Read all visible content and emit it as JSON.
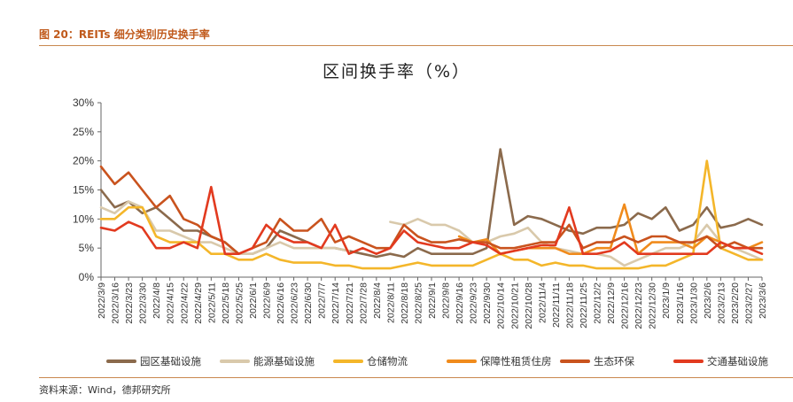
{
  "figure_caption": "图 20：REITs 细分类别历史换手率",
  "source_note": "资料来源：Wind，德邦研究所",
  "chart_data": {
    "type": "line",
    "title": "区间换手率（%）",
    "ylim": [
      0,
      30
    ],
    "y_ticks": [
      0,
      5,
      10,
      15,
      20,
      25,
      30
    ],
    "y_tick_labels": [
      "0%",
      "5%",
      "10%",
      "15%",
      "20%",
      "25%",
      "30%"
    ],
    "x_tick_labels": [
      "2022/3/9",
      "2022/3/16",
      "2022/3/23",
      "2022/3/30",
      "2022/4/8",
      "2022/4/15",
      "2022/4/22",
      "2022/4/29",
      "2022/5/11",
      "2022/5/18",
      "2022/5/25",
      "2022/6/1",
      "2022/6/9",
      "2022/6/16",
      "2022/6/23",
      "2022/6/30",
      "2022/7/7",
      "2022/7/14",
      "2022/7/21",
      "2022/7/28",
      "2022/8/4",
      "2022/8/11",
      "2022/8/18",
      "2022/8/25",
      "2022/9/1",
      "2022/9/8",
      "2022/9/16",
      "2022/9/23",
      "2022/9/30",
      "2022/10/14",
      "2022/10/21",
      "2022/10/28",
      "2022/11/4",
      "2022/11/11",
      "2022/11/18",
      "2022/11/25",
      "2022/12/2",
      "2022/12/9",
      "2022/12/16",
      "2022/12/23",
      "2022/12/30",
      "2023/1/9",
      "2023/1/16",
      "2023/1/30",
      "2023/2/6",
      "2023/2/13",
      "2023/2/20",
      "2023/2/27",
      "2023/3/6"
    ],
    "grid": false,
    "legend_position": "bottom",
    "series": [
      {
        "name": "园区基础设施",
        "color": "#8b6a4c",
        "values": [
          15,
          12,
          13,
          11,
          12,
          10,
          8,
          8,
          7,
          6,
          4,
          4,
          5,
          8,
          7,
          6,
          5,
          5,
          4.5,
          4,
          3.5,
          4,
          3.5,
          5,
          4,
          4,
          4,
          4,
          5,
          22,
          9,
          10.5,
          10,
          9,
          8,
          7.5,
          8.5,
          8.5,
          9,
          11,
          10,
          12,
          8,
          9,
          12,
          8.5,
          9,
          10,
          9
        ]
      },
      {
        "name": "能源基础设施",
        "color": "#d9c9ab",
        "values": [
          12,
          11,
          13,
          12,
          8,
          8,
          7,
          6,
          6,
          5,
          4,
          4,
          5,
          6,
          5,
          5,
          5,
          5,
          4.5,
          null,
          null,
          9.5,
          9,
          10,
          9,
          9,
          8,
          6,
          6,
          7,
          7.5,
          8.5,
          6,
          5,
          4.5,
          4,
          4,
          3.5,
          2,
          3,
          4,
          5,
          5,
          6,
          9,
          6,
          5,
          4,
          3
        ]
      },
      {
        "name": "仓储物流",
        "color": "#f4b62a",
        "values": [
          10,
          10,
          12,
          12,
          7,
          6,
          6,
          6,
          4,
          4,
          3,
          3,
          4,
          3,
          2.5,
          2.5,
          2.5,
          2,
          2,
          1.5,
          1.5,
          1.5,
          2,
          2.5,
          2,
          2,
          2,
          2,
          3,
          4,
          3,
          3,
          2,
          2.5,
          2,
          2,
          1.5,
          1.5,
          1.5,
          1.5,
          2,
          2,
          3,
          4,
          20,
          5,
          4,
          3,
          3
        ]
      },
      {
        "name": "保障性租赁住房",
        "color": "#f08b1c",
        "values": [
          null,
          null,
          null,
          null,
          null,
          null,
          null,
          null,
          null,
          null,
          null,
          null,
          null,
          null,
          null,
          null,
          null,
          null,
          null,
          null,
          null,
          null,
          null,
          null,
          null,
          null,
          7,
          6,
          6.5,
          4,
          4.5,
          5,
          5,
          5,
          4,
          4,
          5,
          5,
          12.5,
          4,
          6,
          6,
          6,
          5,
          7,
          6,
          5,
          5,
          6
        ]
      },
      {
        "name": "生态环保",
        "color": "#c9531e",
        "values": [
          19,
          16,
          18,
          15,
          12,
          14,
          10,
          9,
          7,
          6,
          4,
          5,
          6,
          10,
          8,
          8,
          10,
          6,
          7,
          6,
          5,
          5,
          9,
          7,
          6,
          6,
          6.5,
          6,
          6,
          5,
          5,
          5.5,
          6,
          6,
          9,
          5,
          6,
          6,
          7,
          6,
          7,
          7,
          6,
          6,
          7,
          5,
          6,
          5,
          5
        ]
      },
      {
        "name": "交通基础设施",
        "color": "#e23a1f",
        "values": [
          8.5,
          8,
          9.5,
          8.5,
          5,
          5,
          6,
          5,
          15.5,
          4,
          4,
          5,
          9,
          7,
          6,
          6,
          5,
          9,
          4,
          5,
          4,
          5,
          8,
          6,
          5.5,
          5,
          5,
          6,
          5.5,
          4,
          4.5,
          5,
          5.5,
          5.5,
          12,
          4,
          4,
          4.5,
          6,
          4,
          4,
          4,
          4,
          4,
          4,
          6,
          5,
          5,
          4
        ]
      }
    ]
  }
}
